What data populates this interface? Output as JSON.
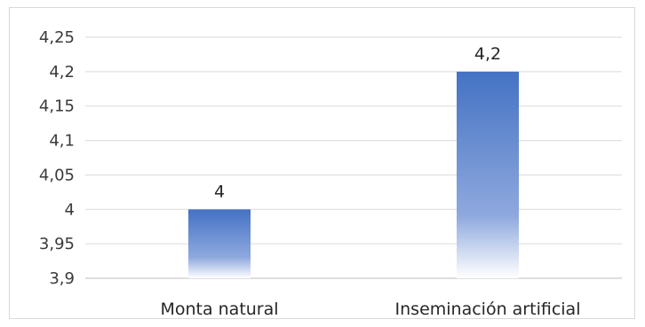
{
  "chart_data": {
    "type": "bar",
    "categories": [
      "Monta natural",
      "Inseminación artificial"
    ],
    "values": [
      4,
      4.2
    ],
    "data_labels": [
      "4",
      "4,2"
    ],
    "ylim": [
      3.9,
      4.25
    ],
    "yticks": [
      3.9,
      3.95,
      4,
      4.05,
      4.1,
      4.15,
      4.2,
      4.25
    ],
    "ytick_labels": [
      "3,9",
      "3,95",
      "4",
      "4,05",
      "4,1",
      "4,15",
      "4,2",
      "4,25"
    ],
    "grid": true,
    "legend": "none",
    "colors": {
      "bar_top": "#4472c4",
      "bar_bottom": "#ffffff",
      "grid": "#d9d9d9",
      "axis": "#bfbfbf"
    }
  }
}
